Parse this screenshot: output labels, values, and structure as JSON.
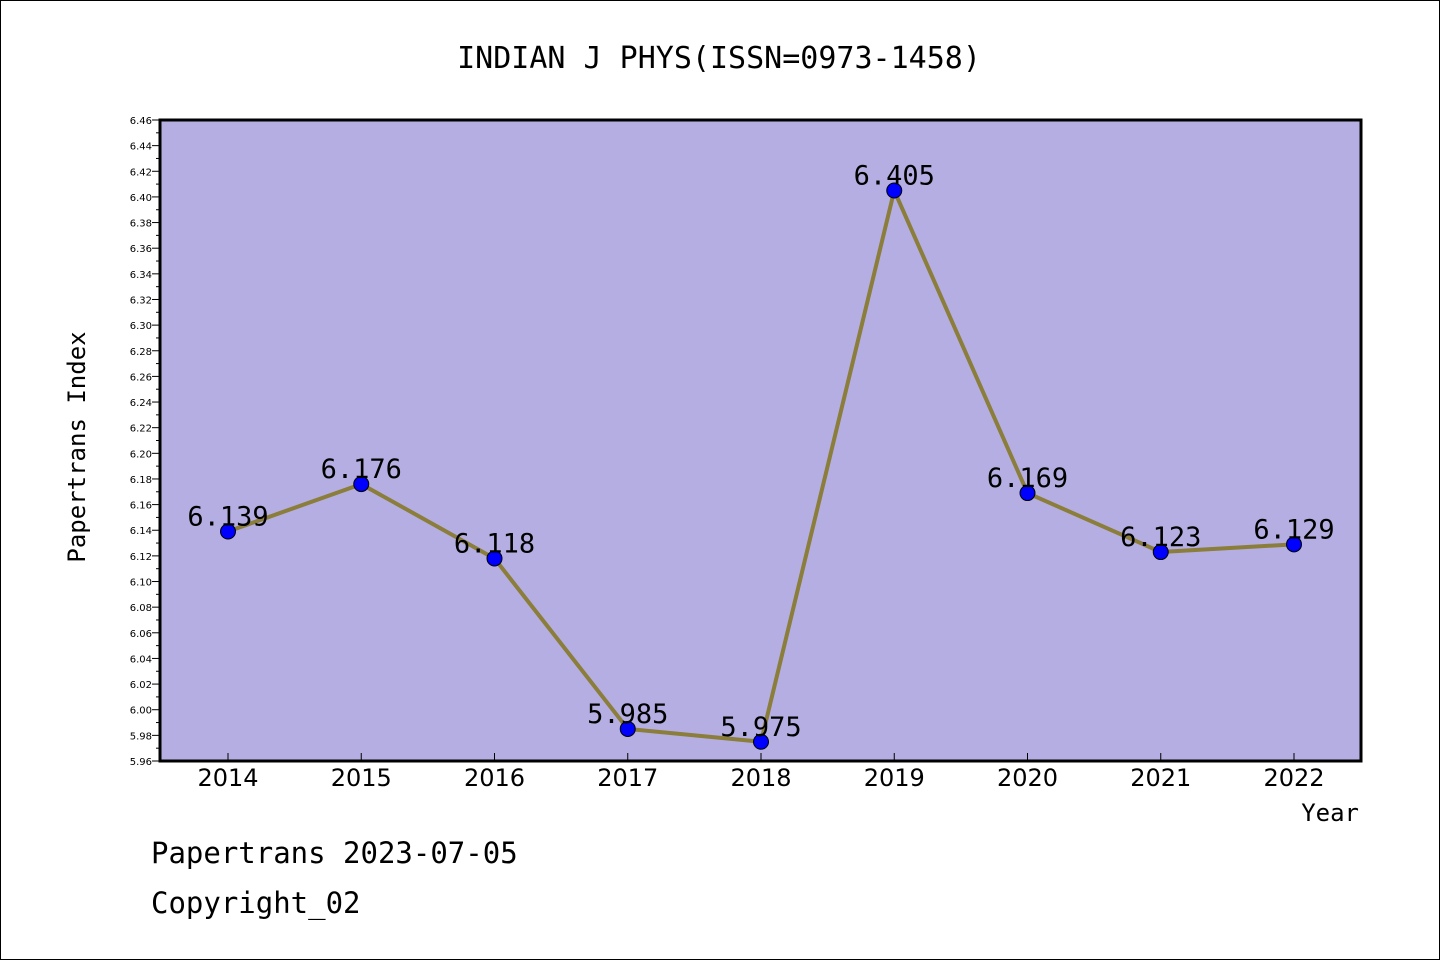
{
  "chart_data": {
    "type": "line",
    "title": "INDIAN J PHYS(ISSN=0973-1458)",
    "xlabel": "Year",
    "ylabel": "Papertrans Index",
    "categories": [
      "2014",
      "2015",
      "2016",
      "2017",
      "2018",
      "2019",
      "2020",
      "2021",
      "2022"
    ],
    "series": [
      {
        "values": [
          6.139,
          6.176,
          6.118,
          5.985,
          5.975,
          6.405,
          6.169,
          6.123,
          6.129
        ],
        "data_labels": [
          "6.139",
          "6.176",
          "6.118",
          "5.985",
          "5.975",
          "6.405",
          "6.169",
          "6.123",
          "6.129"
        ],
        "line_color": "#8B7D3A",
        "marker_color": "#0000FF"
      }
    ],
    "ylim": [
      5.96,
      6.46
    ],
    "yticks": [
      "5.96",
      "5.98",
      "6.00",
      "6.02",
      "6.04",
      "6.06",
      "6.08",
      "6.10",
      "6.12",
      "6.14",
      "6.16",
      "6.18",
      "6.20",
      "6.22",
      "6.24",
      "6.26",
      "6.28",
      "6.30",
      "6.32",
      "6.34",
      "6.36",
      "6.38",
      "6.40",
      "6.42",
      "6.44",
      "6.46"
    ],
    "grid": false,
    "plot_background": "#B4AEE2"
  },
  "footer": {
    "line1": "Papertrans 2023-07-05",
    "line2": "Copyright_02"
  }
}
